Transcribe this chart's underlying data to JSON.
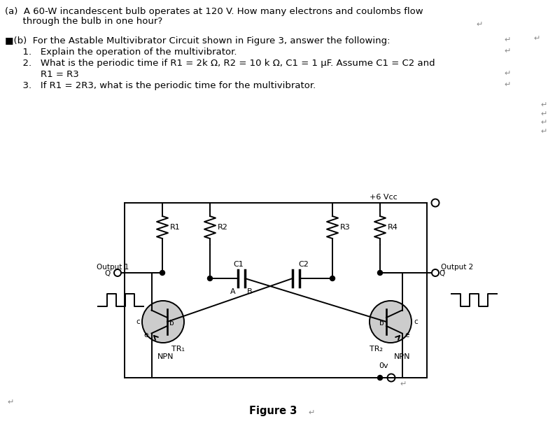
{
  "bg_color": "#ffffff",
  "text_color": "#000000",
  "circuit_color": "#000000",
  "transistor_fill": "#cccccc",
  "line_color": "#000000",
  "text_a_line1": "(a)  A 60-W incandescent bulb operates at 120 V. How many electrons and coulombs flow",
  "text_a_line2": "      through the bulb in one hour?",
  "text_b_line": "■(b)  For the Astable Multivibrator Circuit shown in Figure 3, answer the following:",
  "text_1": "      1.   Explain the operation of the multivibrator.",
  "text_2a": "      2.   What is the periodic time if R1 = 2k Ω, R2 = 10 k Ω, C1 = 1 μF. Assume C1 = C2 and",
  "text_2b": "            R1 = R3",
  "text_3": "      3.   If R1 = 2R3, what is the periodic time for the multivibrator.",
  "fig_caption": "Figure 3",
  "vcc_label": "+6 Vcc",
  "ov_label": "0v",
  "fontsize_main": 9.5,
  "fontsize_small": 8.0,
  "fontsize_tiny": 7.5,
  "fontsize_fig": 10.5
}
